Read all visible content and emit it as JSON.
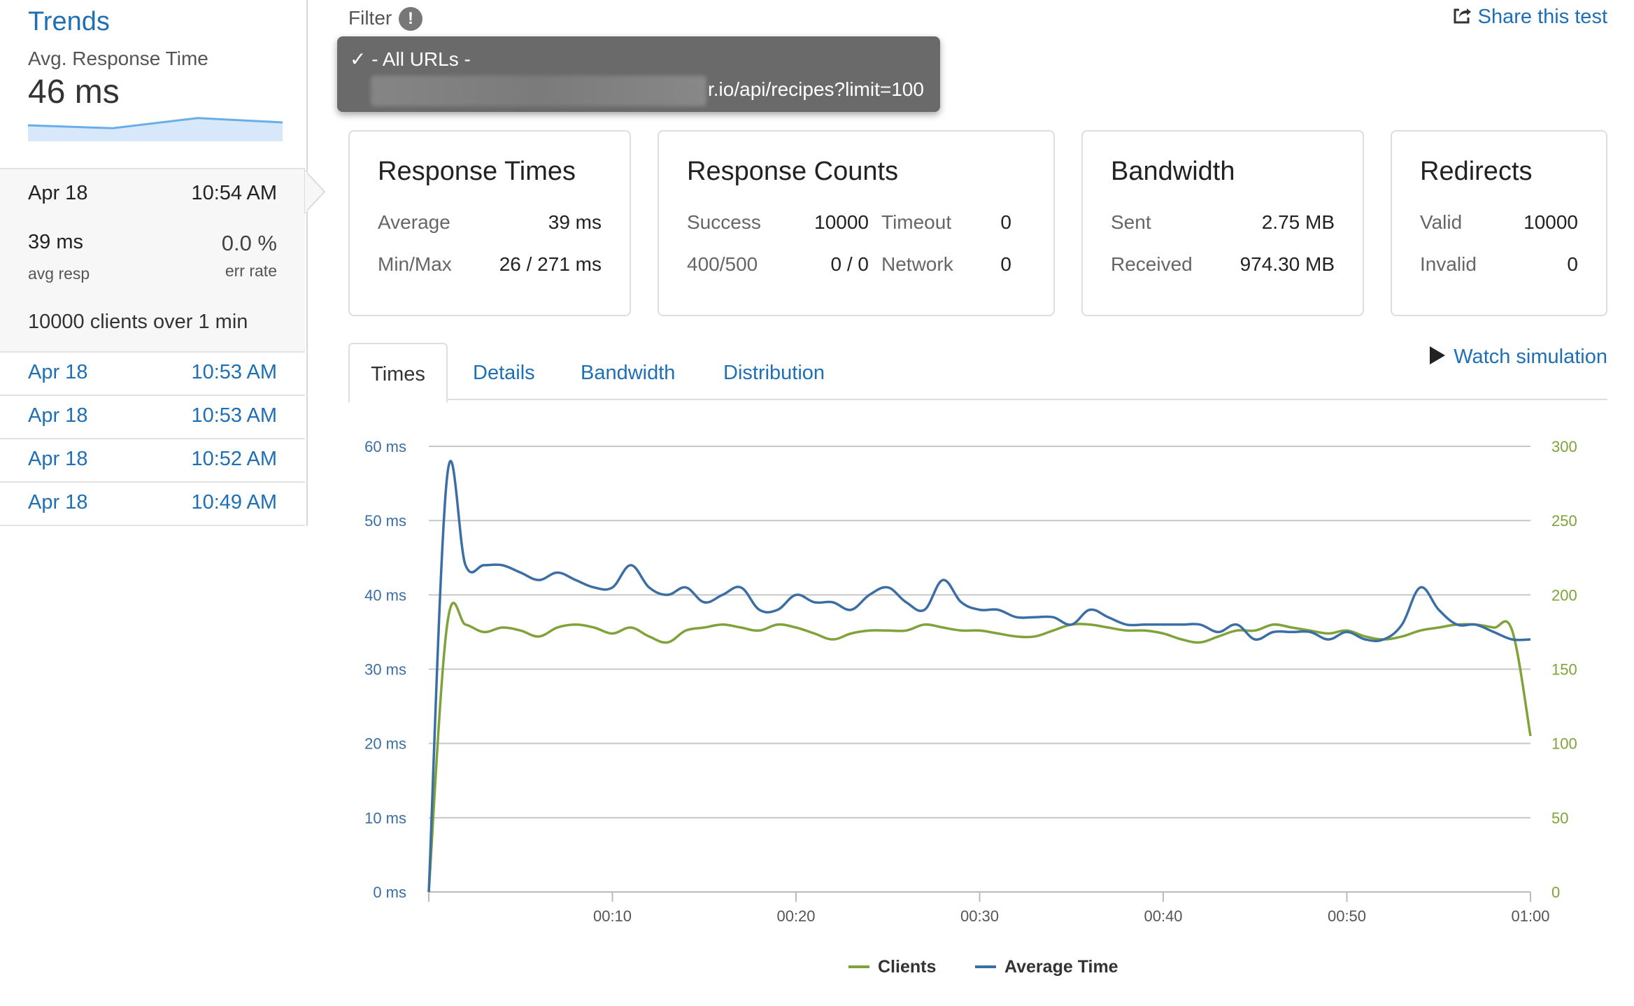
{
  "sidebar": {
    "title": "Trends",
    "metric_label": "Avg. Response Time",
    "metric_value": "46 ms",
    "sparkline": [
      36,
      34,
      41,
      38
    ],
    "current": {
      "date": "Apr 18",
      "time": "10:54 AM",
      "avg_resp_value": "39 ms",
      "avg_resp_label": "avg resp",
      "err_rate_value": "0.0 %",
      "err_rate_label": "err rate",
      "clients_count": "10000",
      "clients_text": "clients over",
      "duration_value": "1",
      "duration_unit": "min"
    },
    "history": [
      {
        "date": "Apr 18",
        "time": "10:53 AM"
      },
      {
        "date": "Apr 18",
        "time": "10:53 AM"
      },
      {
        "date": "Apr 18",
        "time": "10:52 AM"
      },
      {
        "date": "Apr 18",
        "time": "10:49 AM"
      }
    ]
  },
  "filter": {
    "label": "Filter",
    "info_icon": "!",
    "check_mark": "✓",
    "options": {
      "all": "- All URLs -",
      "url_visible": "r.io/api/recipes?limit=100"
    }
  },
  "share_label": "Share this test",
  "cards": {
    "times": {
      "title": "Response Times",
      "average_label": "Average",
      "average_value": "39 ms",
      "minmax_label": "Min/Max",
      "minmax_value": "26 / 271 ms"
    },
    "counts": {
      "title": "Response Counts",
      "success_label": "Success",
      "success_value": "10000",
      "timeout_label": "Timeout",
      "timeout_value": "0",
      "err_label": "400/500",
      "err_value": "0 / 0",
      "network_label": "Network",
      "network_value": "0"
    },
    "bandwidth": {
      "title": "Bandwidth",
      "sent_label": "Sent",
      "sent_value": "2.75 MB",
      "received_label": "Received",
      "received_value": "974.30 MB"
    },
    "redirects": {
      "title": "Redirects",
      "valid_label": "Valid",
      "valid_value": "10000",
      "invalid_label": "Invalid",
      "invalid_value": "0"
    }
  },
  "tabs": [
    {
      "label": "Times",
      "active": true
    },
    {
      "label": "Details"
    },
    {
      "label": "Bandwidth"
    },
    {
      "label": "Distribution"
    }
  ],
  "watch_label": "Watch simulation",
  "colors": {
    "avg_time": "#3b6ea5",
    "clients": "#7fa33a",
    "link": "#1f6fb5"
  },
  "chart_data": {
    "type": "line",
    "x_ticks": [
      "00:10",
      "00:20",
      "00:30",
      "00:40",
      "00:50",
      "01:00"
    ],
    "x_range": [
      0,
      60
    ],
    "y_left_ticks": [
      "0 ms",
      "10 ms",
      "20 ms",
      "30 ms",
      "40 ms",
      "50 ms",
      "60 ms"
    ],
    "y_left_range": [
      0,
      60
    ],
    "y_right_ticks": [
      "0",
      "50",
      "100",
      "150",
      "200",
      "250",
      "300"
    ],
    "y_right_range": [
      0,
      300
    ],
    "grid": true,
    "legend": "bottom-center",
    "series": [
      {
        "name": "Clients",
        "axis": "right",
        "x": [
          0,
          1,
          2,
          3,
          4,
          5,
          6,
          7,
          8,
          9,
          10,
          11,
          12,
          13,
          14,
          15,
          16,
          17,
          18,
          19,
          20,
          21,
          22,
          23,
          24,
          25,
          26,
          27,
          28,
          29,
          30,
          31,
          32,
          33,
          34,
          35,
          36,
          37,
          38,
          39,
          40,
          41,
          42,
          43,
          44,
          45,
          46,
          47,
          48,
          49,
          50,
          51,
          52,
          53,
          54,
          55,
          56,
          57,
          58,
          59,
          60
        ],
        "values": [
          0,
          180,
          180,
          175,
          178,
          176,
          172,
          178,
          180,
          178,
          174,
          178,
          172,
          168,
          176,
          178,
          180,
          178,
          176,
          180,
          178,
          174,
          170,
          174,
          176,
          176,
          176,
          180,
          178,
          176,
          176,
          174,
          172,
          172,
          176,
          180,
          180,
          178,
          176,
          176,
          174,
          170,
          168,
          172,
          176,
          176,
          180,
          178,
          176,
          174,
          176,
          172,
          170,
          172,
          176,
          178,
          180,
          180,
          178,
          176,
          105
        ]
      },
      {
        "name": "Average Time",
        "axis": "left",
        "x": [
          0,
          1,
          2,
          3,
          4,
          5,
          6,
          7,
          8,
          9,
          10,
          11,
          12,
          13,
          14,
          15,
          16,
          17,
          18,
          19,
          20,
          21,
          22,
          23,
          24,
          25,
          26,
          27,
          28,
          29,
          30,
          31,
          32,
          33,
          34,
          35,
          36,
          37,
          38,
          39,
          40,
          41,
          42,
          43,
          44,
          45,
          46,
          47,
          48,
          49,
          50,
          51,
          52,
          53,
          54,
          55,
          56,
          57,
          58,
          59,
          60
        ],
        "values": [
          0,
          56,
          44,
          44,
          44,
          43,
          42,
          43,
          42,
          41,
          41,
          44,
          41,
          40,
          41,
          39,
          40,
          41,
          38,
          38,
          40,
          39,
          39,
          38,
          40,
          41,
          39,
          38,
          42,
          39,
          38,
          38,
          37,
          37,
          37,
          36,
          38,
          37,
          36,
          36,
          36,
          36,
          36,
          35,
          36,
          34,
          35,
          35,
          35,
          34,
          35,
          34,
          34,
          36,
          41,
          38,
          36,
          36,
          35,
          34,
          34
        ]
      }
    ]
  }
}
